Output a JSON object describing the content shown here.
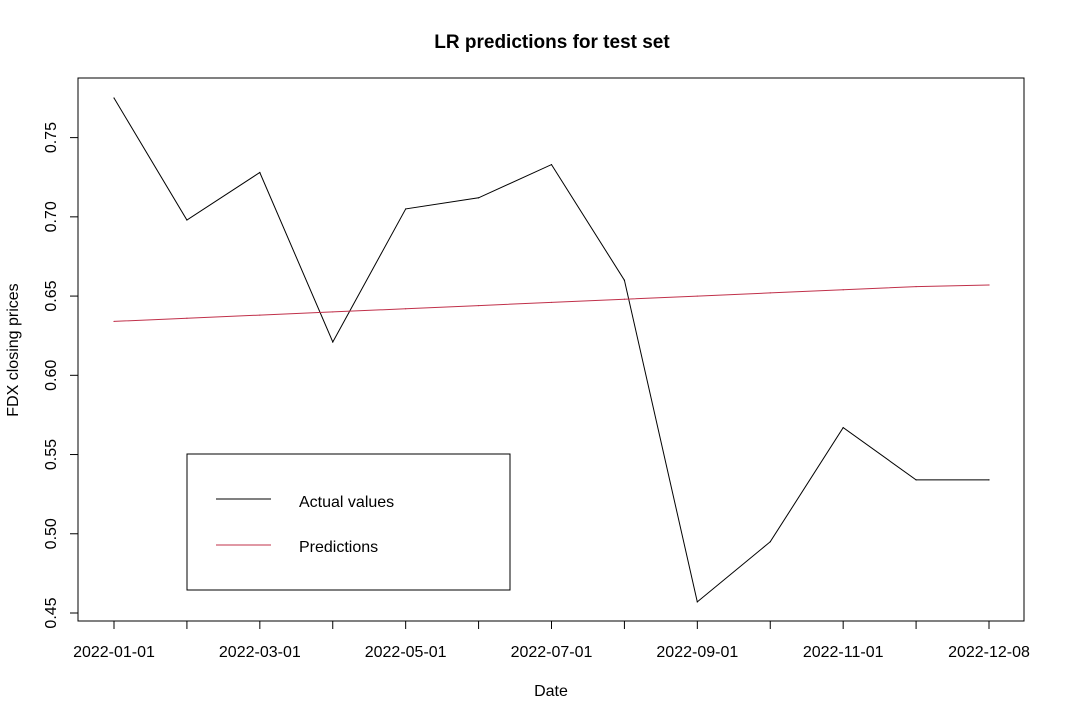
{
  "chart_data": {
    "type": "line",
    "title": "LR predictions for test set",
    "xlabel": "Date",
    "ylabel": "FDX closing prices",
    "x": [
      "2022-01-01",
      "2022-02-01",
      "2022-03-01",
      "2022-04-01",
      "2022-05-01",
      "2022-06-01",
      "2022-07-01",
      "2022-08-01",
      "2022-09-01",
      "2022-10-01",
      "2022-11-01",
      "2022-12-01",
      "2022-12-08"
    ],
    "x_tick_labels": [
      "2022-01-01",
      "",
      "2022-03-01",
      "",
      "2022-05-01",
      "",
      "2022-07-01",
      "",
      "2022-09-01",
      "",
      "2022-11-01",
      "",
      "2022-12-08"
    ],
    "ylim": [
      0.45,
      0.78
    ],
    "y_ticks": [
      "0.45",
      "0.50",
      "0.55",
      "0.60",
      "0.65",
      "0.70",
      "0.75"
    ],
    "series": [
      {
        "name": "Actual values",
        "color": "#000000",
        "values": [
          0.775,
          0.698,
          0.728,
          0.621,
          0.705,
          0.712,
          0.733,
          0.66,
          0.457,
          0.495,
          0.567,
          0.534,
          0.534
        ]
      },
      {
        "name": "Predictions",
        "color": "#c0304a",
        "values": [
          0.634,
          0.636,
          0.638,
          0.64,
          0.642,
          0.644,
          0.646,
          0.648,
          0.65,
          0.652,
          0.654,
          0.656,
          0.657
        ]
      }
    ],
    "legend": {
      "placement": "bottom-left"
    },
    "grid": false
  }
}
